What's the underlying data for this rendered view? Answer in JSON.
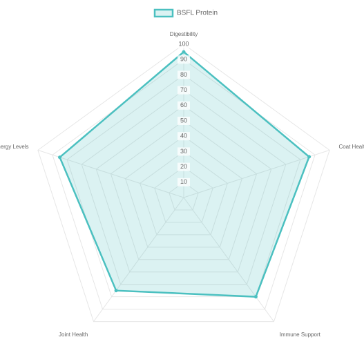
{
  "chart_data": {
    "type": "radar",
    "categories": [
      "Digestibility",
      "Coat Health",
      "Immune Support",
      "Joint Health",
      "Energy Levels"
    ],
    "series": [
      {
        "name": "BSFL Protein",
        "color": "#4bc0c0",
        "values": [
          95,
          86,
          80,
          75,
          85
        ]
      }
    ],
    "ylim": [
      0,
      100
    ],
    "yticks": [
      10,
      20,
      30,
      40,
      50,
      60,
      70,
      80,
      90,
      100
    ],
    "grid": true,
    "legend": "top"
  }
}
